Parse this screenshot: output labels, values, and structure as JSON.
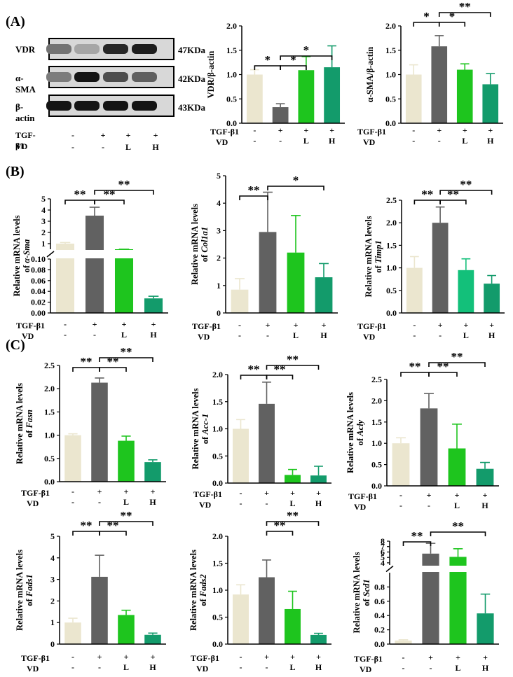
{
  "panel_labels": [
    "(A)",
    "(B)",
    "(C)"
  ],
  "western_blot": {
    "rows": [
      {
        "protein": "VDR",
        "size": "47KDa",
        "intensities": [
          0.45,
          0.18,
          0.85,
          0.9
        ]
      },
      {
        "protein": "α-SMA",
        "size": "42KDa",
        "intensities": [
          0.4,
          0.95,
          0.65,
          0.55
        ]
      },
      {
        "protein": "β-actin",
        "size": "43KDa",
        "intensities": [
          0.95,
          0.95,
          0.95,
          0.95
        ]
      }
    ],
    "conditions": {
      "row1_label": "TGF-β1",
      "row1": [
        "-",
        "+",
        "+",
        "+"
      ],
      "row2_label": "VD",
      "row2": [
        "-",
        "-",
        "L",
        "H"
      ]
    }
  },
  "colors": {
    "ctrl": "#ebe6cf",
    "tgf": "#616161",
    "low": "#1ec51e",
    "high": "#139b6b",
    "low_alt": "#13c07a"
  },
  "chart_data": [
    {
      "type": "bar",
      "panel": "A",
      "categories": [
        "-/-",
        "+/-",
        "+/L",
        "+/H"
      ],
      "ylabel_lines": [
        "VDR/β-actin"
      ],
      "ylim": [
        0,
        2.0
      ],
      "yticks": [
        "0.0",
        "0.5",
        "1.0",
        "1.5",
        "2.0"
      ],
      "values": [
        1.0,
        0.33,
        1.09,
        1.15
      ],
      "errors": [
        0.1,
        0.07,
        0.28,
        0.44
      ],
      "sig": [
        {
          "from": 0,
          "to": 1,
          "label": "*"
        },
        {
          "from": 1,
          "to": 2,
          "label": "*"
        },
        {
          "from": 1,
          "to": 3,
          "label": "*"
        }
      ],
      "conditions": {
        "row1_label": "TGF-β1",
        "row1": [
          "-",
          "+",
          "+",
          "+"
        ],
        "row2_label": "VD",
        "row2": [
          "-",
          "-",
          "L",
          "H"
        ]
      }
    },
    {
      "type": "bar",
      "panel": "A",
      "categories": [
        "-/-",
        "+/-",
        "+/L",
        "+/H"
      ],
      "ylabel_lines": [
        "α-SMA/β-actin"
      ],
      "ylim": [
        0,
        2.0
      ],
      "yticks": [
        "0.0",
        "0.5",
        "1.0",
        "1.5",
        "2.0"
      ],
      "values": [
        1.0,
        1.58,
        1.1,
        0.8
      ],
      "errors": [
        0.2,
        0.22,
        0.12,
        0.22
      ],
      "sig": [
        {
          "from": 0,
          "to": 1,
          "label": "*"
        },
        {
          "from": 1,
          "to": 2,
          "label": "*"
        },
        {
          "from": 1,
          "to": 3,
          "label": "**"
        }
      ],
      "conditions": {
        "row1_label": "TGF-β1",
        "row1": [
          "-",
          "+",
          "+",
          "+"
        ],
        "row2_label": "VD",
        "row2": [
          "-",
          "-",
          "L",
          "H"
        ]
      }
    },
    {
      "type": "bar",
      "panel": "B",
      "axis_break": true,
      "categories": [
        "-/-",
        "+/-",
        "+/L",
        "+/H"
      ],
      "ylabel_lines": [
        "Relative mRNA levels",
        "of α-Sma"
      ],
      "lower_ylim": [
        0,
        0.1
      ],
      "lower_yticks": [
        "0.00",
        "0.02",
        "0.04",
        "0.06",
        "0.08",
        "0.10"
      ],
      "upper_ylim": [
        0.5,
        5
      ],
      "upper_yticks": [
        "1",
        "2",
        "3",
        "4",
        "5"
      ],
      "values": [
        1.0,
        3.5,
        0.35,
        0.027
      ],
      "errors": [
        0.1,
        0.75,
        0.05,
        0.004
      ],
      "sig": [
        {
          "from": 0,
          "to": 1,
          "label": "**"
        },
        {
          "from": 1,
          "to": 2,
          "label": "**"
        },
        {
          "from": 1,
          "to": 3,
          "label": "**"
        }
      ],
      "conditions": {
        "row1_label": "TGF-β1",
        "row1": [
          "-",
          "+",
          "+",
          "+"
        ],
        "row2_label": "VD",
        "row2": [
          "-",
          "-",
          "L",
          "H"
        ]
      }
    },
    {
      "type": "bar",
      "panel": "B",
      "categories": [
        "-/-",
        "+/-",
        "+/L",
        "+/H"
      ],
      "ylabel_lines": [
        "Relative mRNA levels",
        "of Col1a1"
      ],
      "ylim": [
        0,
        5
      ],
      "yticks": [
        "0",
        "1",
        "2",
        "3",
        "4",
        "5"
      ],
      "values": [
        0.85,
        2.95,
        2.2,
        1.3
      ],
      "errors": [
        0.4,
        1.45,
        1.35,
        0.5
      ],
      "sig": [
        {
          "from": 0,
          "to": 1,
          "label": "**"
        },
        {
          "from": 1,
          "to": 3,
          "label": "*"
        }
      ],
      "conditions": {
        "row1_label": "TGF-β1",
        "row1": [
          "-",
          "+",
          "+",
          "+"
        ],
        "row2_label": "VD",
        "row2": [
          "-",
          "-",
          "L",
          "H"
        ]
      }
    },
    {
      "type": "bar",
      "panel": "B",
      "categories": [
        "-/-",
        "+/-",
        "+/L",
        "+/H"
      ],
      "ylabel_lines": [
        "Relative mRNA levels",
        "of Timp1"
      ],
      "ylim": [
        0,
        2.5
      ],
      "yticks": [
        "0.0",
        "0.5",
        "1.0",
        "1.5",
        "2.0",
        "2.5"
      ],
      "values": [
        1.0,
        2.0,
        0.95,
        0.65
      ],
      "errors": [
        0.25,
        0.35,
        0.25,
        0.18
      ],
      "sig": [
        {
          "from": 0,
          "to": 1,
          "label": "**"
        },
        {
          "from": 1,
          "to": 2,
          "label": "**"
        },
        {
          "from": 1,
          "to": 3,
          "label": "**"
        }
      ],
      "conditions": {
        "row1_label": "TGF-β1",
        "row1": [
          "-",
          "+",
          "+",
          "+"
        ],
        "row2_label": "VD",
        "row2": [
          "-",
          "-",
          "L",
          "H"
        ]
      }
    },
    {
      "type": "bar",
      "panel": "C",
      "categories": [
        "-/-",
        "+/-",
        "+/L",
        "+/H"
      ],
      "ylabel_lines": [
        "Relative mRNA levels",
        "of Fasn"
      ],
      "ylim": [
        0,
        2.5
      ],
      "yticks": [
        "0.0",
        "0.5",
        "1.0",
        "1.5",
        "2.0",
        "2.5"
      ],
      "values": [
        1.0,
        2.13,
        0.88,
        0.42
      ],
      "errors": [
        0.03,
        0.1,
        0.1,
        0.05
      ],
      "sig": [
        {
          "from": 0,
          "to": 1,
          "label": "**"
        },
        {
          "from": 1,
          "to": 2,
          "label": "**"
        },
        {
          "from": 1,
          "to": 3,
          "label": "**"
        }
      ],
      "conditions": {
        "row1_label": "TGF-β1",
        "row1": [
          "-",
          "+",
          "+",
          "+"
        ],
        "row2_label": "VD",
        "row2": [
          "-",
          "-",
          "L",
          "H"
        ]
      }
    },
    {
      "type": "bar",
      "panel": "C",
      "categories": [
        "-/-",
        "+/-",
        "+/L",
        "+/H"
      ],
      "ylabel_lines": [
        "Relative mRNA levels",
        "of Acc-1"
      ],
      "ylim": [
        0,
        2.0
      ],
      "yticks": [
        "0.0",
        "0.5",
        "1.0",
        "1.5",
        "2.0"
      ],
      "values": [
        1.0,
        1.46,
        0.15,
        0.14
      ],
      "errors": [
        0.17,
        0.4,
        0.1,
        0.17
      ],
      "sig": [
        {
          "from": 0,
          "to": 1,
          "label": "**"
        },
        {
          "from": 1,
          "to": 2,
          "label": "**"
        },
        {
          "from": 1,
          "to": 3,
          "label": "**"
        }
      ],
      "conditions": {
        "row1_label": "TGF-β1",
        "row1": [
          "-",
          "+",
          "+",
          "+"
        ],
        "row2_label": "VD",
        "row2": [
          "-",
          "-",
          "L",
          "H"
        ]
      }
    },
    {
      "type": "bar",
      "panel": "C",
      "categories": [
        "-/-",
        "+/-",
        "+/L",
        "+/H"
      ],
      "ylabel_lines": [
        "Relative mRNA levels",
        "of Acly"
      ],
      "ylim": [
        0,
        2.5
      ],
      "yticks": [
        "0.0",
        "0.5",
        "1.0",
        "1.5",
        "2.0",
        "2.5"
      ],
      "values": [
        1.0,
        1.82,
        0.88,
        0.4
      ],
      "errors": [
        0.13,
        0.35,
        0.57,
        0.15
      ],
      "sig": [
        {
          "from": 0,
          "to": 1,
          "label": "**"
        },
        {
          "from": 1,
          "to": 2,
          "label": "**"
        },
        {
          "from": 1,
          "to": 3,
          "label": "**"
        }
      ],
      "conditions": {
        "row1_label": "TGF-β1",
        "row1": [
          "-",
          "+",
          "+",
          "+"
        ],
        "row2_label": "VD",
        "row2": [
          "-",
          "-",
          "L",
          "H"
        ]
      }
    },
    {
      "type": "bar",
      "panel": "C",
      "categories": [
        "-/-",
        "+/-",
        "+/L",
        "+/H"
      ],
      "ylabel_lines": [
        "Relative mRNA levels",
        "of Fads1"
      ],
      "ylim": [
        0,
        5
      ],
      "yticks": [
        "0",
        "1",
        "2",
        "3",
        "4",
        "5"
      ],
      "values": [
        1.0,
        3.12,
        1.35,
        0.43
      ],
      "errors": [
        0.2,
        1.0,
        0.22,
        0.08
      ],
      "sig": [
        {
          "from": 0,
          "to": 1,
          "label": "**"
        },
        {
          "from": 1,
          "to": 2,
          "label": "**"
        },
        {
          "from": 1,
          "to": 3,
          "label": "**"
        }
      ],
      "conditions": {
        "row1_label": "TGF-β1",
        "row1": [
          "-",
          "+",
          "+",
          "+"
        ],
        "row2_label": "VD",
        "row2": [
          "-",
          "-",
          "L",
          "H"
        ]
      }
    },
    {
      "type": "bar",
      "panel": "C",
      "categories": [
        "-/-",
        "+/-",
        "+/L",
        "+/H"
      ],
      "ylabel_lines": [
        "Relative mRNA levels",
        "of Fads2"
      ],
      "ylim": [
        0,
        2.0
      ],
      "yticks": [
        "0.0",
        "0.5",
        "1.0",
        "1.5",
        "2.0"
      ],
      "values": [
        0.92,
        1.24,
        0.65,
        0.17
      ],
      "errors": [
        0.18,
        0.32,
        0.33,
        0.03
      ],
      "sig": [
        {
          "from": 1,
          "to": 2,
          "label": "**"
        },
        {
          "from": 1,
          "to": 3,
          "label": "**"
        }
      ],
      "conditions": {
        "row1_label": "TGF-β1",
        "row1": [
          "-",
          "+",
          "+",
          "+"
        ],
        "row2_label": "VD",
        "row2": [
          "-",
          "-",
          "L",
          "H"
        ]
      }
    },
    {
      "type": "bar",
      "panel": "C",
      "axis_break": true,
      "categories": [
        "-/-",
        "+/-",
        "+/L",
        "+/H"
      ],
      "ylabel_lines": [
        "Relative mRNA levels",
        "of Scd1"
      ],
      "lower_ylim": [
        0,
        1.0
      ],
      "lower_yticks": [
        "0.0",
        "0.2",
        "0.4",
        "0.6",
        "0.8"
      ],
      "upper_ylim": [
        3.6,
        8
      ],
      "upper_yticks": [
        "4",
        "5",
        "6",
        "7",
        "8"
      ],
      "values": [
        0.05,
        5.7,
        5.1,
        0.43
      ],
      "errors": [
        0.01,
        1.9,
        1.5,
        0.27
      ],
      "sig": [
        {
          "from": 0,
          "to": 1,
          "label": "**"
        },
        {
          "from": 1,
          "to": 3,
          "label": "**"
        }
      ],
      "conditions": {
        "row1_label": "TGF-β1",
        "row1": [
          "-",
          "+",
          "+",
          "+"
        ],
        "row2_label": "VD",
        "row2": [
          "-",
          "-",
          "L",
          "H"
        ]
      }
    }
  ]
}
